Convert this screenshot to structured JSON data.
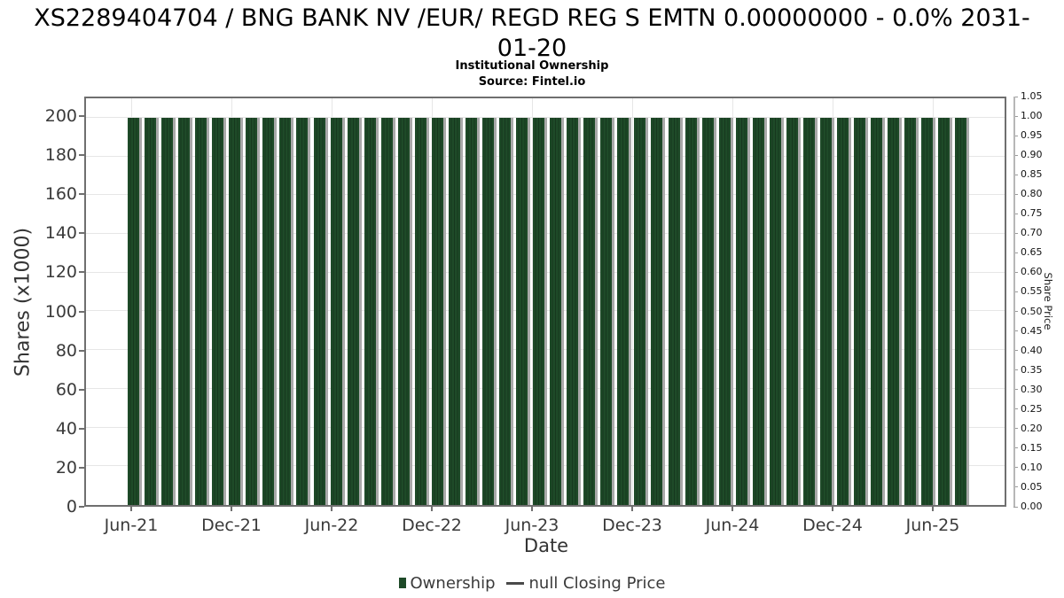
{
  "page": {
    "title": "XS2289404704 / BNG BANK NV /EUR/ REGD REG S EMTN 0.00000000 - 0.0% 2031-01-20",
    "subtitle": "Institutional Ownership",
    "source": "Source: Fintel.io"
  },
  "chart_data": {
    "type": "bar",
    "title": "XS2289404704 / BNG BANK NV /EUR/ REGD REG S EMTN 0.00000000 - 0.0% 2031-01-20",
    "subtitle": "Institutional Ownership",
    "source": "Source: Fintel.io",
    "grid": true,
    "legend_position": "bottom",
    "x_axis": {
      "label": "Date",
      "tick_labels": [
        "Jun-21",
        "Dec-21",
        "Jun-22",
        "Dec-22",
        "Jun-23",
        "Dec-23",
        "Jun-24",
        "Dec-24",
        "Jun-25"
      ]
    },
    "y_axis_left": {
      "label": "Shares (x1000)",
      "ticks": [
        0,
        20,
        40,
        60,
        80,
        100,
        120,
        140,
        160,
        180,
        200
      ],
      "max": 210,
      "min": 0
    },
    "y_axis_right": {
      "label": "Share Price",
      "ticks": [
        0.0,
        0.05,
        0.1,
        0.15,
        0.2,
        0.25,
        0.3,
        0.35,
        0.4,
        0.45,
        0.5,
        0.55,
        0.6,
        0.65,
        0.7,
        0.75,
        0.8,
        0.85,
        0.9,
        0.95,
        1.0,
        1.05
      ],
      "max": 1.05,
      "min": 0
    },
    "categories": [
      "Jun-21",
      "Jul-21",
      "Aug-21",
      "Sep-21",
      "Oct-21",
      "Nov-21",
      "Dec-21",
      "Jan-22",
      "Feb-22",
      "Mar-22",
      "Apr-22",
      "May-22",
      "Jun-22",
      "Jul-22",
      "Aug-22",
      "Sep-22",
      "Oct-22",
      "Nov-22",
      "Dec-22",
      "Jan-23",
      "Feb-23",
      "Mar-23",
      "Apr-23",
      "May-23",
      "Jun-23",
      "Jul-23",
      "Aug-23",
      "Sep-23",
      "Oct-23",
      "Nov-23",
      "Dec-23",
      "Jan-24",
      "Feb-24",
      "Mar-24",
      "Apr-24",
      "May-24",
      "Jun-24",
      "Jul-24",
      "Aug-24",
      "Sep-24",
      "Oct-24",
      "Nov-24",
      "Dec-24",
      "Jan-25",
      "Feb-25",
      "Mar-25",
      "Apr-25",
      "May-25",
      "Jun-25",
      "Jul-25"
    ],
    "series": [
      {
        "name": "Ownership",
        "unit": "shares_x1000",
        "values": [
          200,
          200,
          200,
          200,
          200,
          200,
          200,
          200,
          200,
          200,
          200,
          200,
          200,
          200,
          200,
          200,
          200,
          200,
          200,
          200,
          200,
          200,
          200,
          200,
          200,
          200,
          200,
          200,
          200,
          200,
          200,
          200,
          200,
          200,
          200,
          200,
          200,
          200,
          200,
          200,
          200,
          200,
          200,
          200,
          200,
          200,
          200,
          200,
          200,
          200
        ]
      },
      {
        "name": "null Closing Price",
        "unit": "share_price",
        "values": []
      }
    ],
    "legend": [
      {
        "label": "Ownership",
        "marker": "square",
        "color": "#1e4a28"
      },
      {
        "label": "null Closing Price",
        "marker": "line",
        "color": "#4a4a4a"
      }
    ],
    "colors": {
      "bar_fill": "#1e4a28",
      "bar_stripe": "#16381e",
      "bar_shadow": "#a9a9a9",
      "gridline": "#e6e6e6",
      "plot_border": "#6f6f6f",
      "tick_text": "#3a3a3a"
    }
  }
}
